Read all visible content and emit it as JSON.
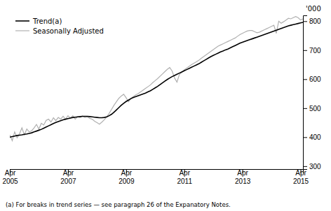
{
  "chart_data": {
    "type": "line",
    "ylabel": "'000",
    "annotations": [
      "(a) For breaks in trend series — see paragraph 26 of the Expanatory Notes."
    ],
    "categories": [
      "Apr\n2005",
      null,
      null,
      null,
      null,
      null,
      null,
      null,
      null,
      null,
      null,
      null,
      null,
      null,
      null,
      null,
      null,
      null,
      null,
      null,
      null,
      null,
      null,
      null,
      "Apr\n2007",
      null,
      null,
      null,
      null,
      null,
      null,
      null,
      null,
      null,
      null,
      null,
      null,
      null,
      null,
      null,
      null,
      null,
      null,
      null,
      null,
      null,
      null,
      null,
      "Apr\n2009",
      null,
      null,
      null,
      null,
      null,
      null,
      null,
      null,
      null,
      null,
      null,
      null,
      null,
      null,
      null,
      null,
      null,
      null,
      null,
      null,
      null,
      null,
      null,
      "Apr\n2011",
      null,
      null,
      null,
      null,
      null,
      null,
      null,
      null,
      null,
      null,
      null,
      null,
      null,
      null,
      null,
      null,
      null,
      null,
      null,
      null,
      null,
      null,
      null,
      "Apr\n2013",
      null,
      null,
      null,
      null,
      null,
      null,
      null,
      null,
      null,
      null,
      null,
      null,
      null,
      null,
      null,
      null,
      null,
      null,
      null,
      null,
      null,
      null,
      null,
      "Apr\n2015",
      null
    ],
    "series": [
      {
        "name": "Trend(a)",
        "color": "#000000",
        "values": [
          400,
          402,
          404,
          406,
          407,
          408,
          410,
          411,
          413,
          415,
          418,
          421,
          424,
          427,
          431,
          435,
          439,
          443,
          447,
          451,
          454,
          457,
          460,
          462,
          464,
          466,
          468,
          469,
          470,
          471,
          472,
          472,
          472,
          471,
          470,
          469,
          468,
          467,
          467,
          468,
          470,
          474,
          479,
          486,
          494,
          502,
          510,
          517,
          523,
          528,
          533,
          537,
          540,
          543,
          546,
          549,
          552,
          556,
          560,
          565,
          570,
          575,
          581,
          587,
          593,
          599,
          604,
          609,
          613,
          617,
          621,
          625,
          629,
          633,
          637,
          641,
          645,
          649,
          653,
          658,
          663,
          668,
          673,
          678,
          682,
          686,
          690,
          694,
          697,
          701,
          704,
          708,
          712,
          716,
          720,
          724,
          727,
          730,
          733,
          736,
          739,
          742,
          745,
          748,
          751,
          754,
          757,
          760,
          763,
          766,
          769,
          772,
          775,
          778,
          781,
          784,
          786,
          788,
          790,
          792,
          794,
          796
        ]
      },
      {
        "name": "Seasonally Adjusted",
        "color": "#b0b0b0",
        "values": [
          408,
          388,
          418,
          398,
          412,
          432,
          408,
          428,
          418,
          422,
          432,
          444,
          428,
          448,
          442,
          458,
          462,
          452,
          467,
          457,
          468,
          462,
          472,
          462,
          474,
          466,
          474,
          462,
          471,
          468,
          473,
          468,
          470,
          465,
          462,
          455,
          450,
          445,
          452,
          460,
          470,
          482,
          496,
          510,
          522,
          534,
          542,
          548,
          536,
          522,
          534,
          540,
          546,
          550,
          556,
          562,
          568,
          574,
          580,
          588,
          595,
          602,
          610,
          618,
          626,
          634,
          640,
          628,
          604,
          590,
          616,
          624,
          632,
          638,
          644,
          650,
          655,
          660,
          665,
          672,
          678,
          684,
          690,
          696,
          702,
          708,
          714,
          718,
          722,
          726,
          730,
          734,
          738,
          742,
          748,
          754,
          758,
          762,
          766,
          768,
          768,
          764,
          760,
          762,
          766,
          770,
          774,
          778,
          782,
          786,
          758,
          800,
          793,
          798,
          804,
          810,
          808,
          812,
          816,
          812,
          804,
          808
        ]
      }
    ],
    "ylim": [
      290,
      820
    ],
    "yticks": [
      300,
      400,
      500,
      600,
      700,
      800
    ],
    "legend": "upper left",
    "grid": false
  }
}
